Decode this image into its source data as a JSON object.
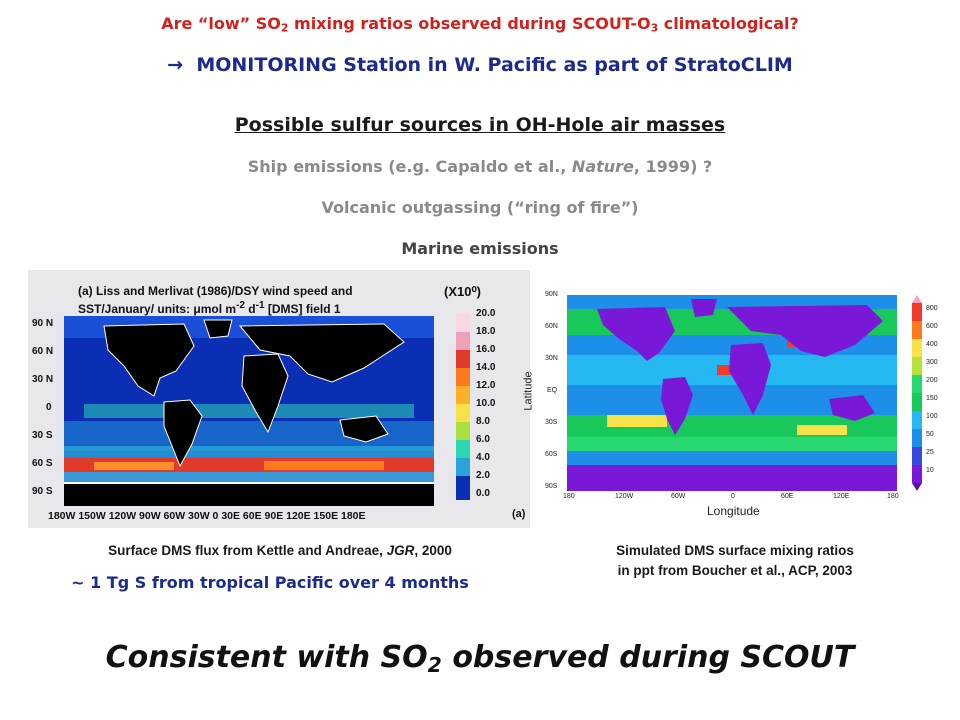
{
  "header": {
    "question_pre": "Are “low” SO",
    "question_sub1": "2",
    "question_mid": " mixing ratios observed during SCOUT-O",
    "question_sub2": "3",
    "question_post": " climatological?",
    "arrow": "→",
    "monitoring": "MONITORING Station in W. Pacific as part of StratoCLIM"
  },
  "sources": {
    "heading": "Possible sulfur sources in OH-Hole air masses",
    "ship_pre": "Ship emissions (e.g. Capaldo et al., ",
    "ship_journal": "Nature",
    "ship_post": ", 1999) ?",
    "volcanic": "Volcanic outgassing (“ring of fire”)",
    "marine": "Marine emissions"
  },
  "left_figure": {
    "title_line1": "(a) Liss and Merlivat (1986)/DSY wind speed and",
    "title_line2_pre": "SST/January/ units: μmol m",
    "title_line2_sup1": "-2",
    "title_line2_mid": " d",
    "title_line2_sup2": "-1",
    "title_line2_post": " [DMS] field 1",
    "scale_label": "(X10⁰)",
    "lat_ticks": [
      "90 N",
      "60 N",
      "30 N",
      "0",
      "30 S",
      "60 S",
      "90 S"
    ],
    "lon_ticks": "180W 150W 120W 90W 60W 30W 0 30E 60E 90E 120E 150E 180E",
    "colorbar_ticks": [
      "20.0",
      "18.0",
      "16.0",
      "14.0",
      "12.0",
      "10.0",
      "8.0",
      "6.0",
      "4.0",
      "2.0",
      "0.0"
    ],
    "panel_tag": "(a)",
    "caption_pre": "Surface DMS flux from Kettle and Andreae, ",
    "caption_journal": "JGR",
    "caption_post": ", 2000",
    "note": "~ 1 Tg S from tropical Pacific over 4 months"
  },
  "right_figure": {
    "lat_ticks": [
      "90N",
      "60N",
      "30N",
      "EQ",
      "30S",
      "60S",
      "90S"
    ],
    "lon_ticks": [
      "180",
      "120W",
      "60W",
      "0",
      "60E",
      "120E",
      "180"
    ],
    "ylabel": "Latitude",
    "xlabel": "Longitude",
    "colorbar_ticks": [
      "800",
      "600",
      "400",
      "300",
      "200",
      "150",
      "100",
      "50",
      "25",
      "10"
    ],
    "caption_line1": "Simulated DMS surface mixing ratios",
    "caption_line2": "in ppt from Boucher et al., ACP, 2003"
  },
  "conclusion": {
    "pre": "Consistent with SO",
    "sub": "2",
    "post": " observed during SCOUT"
  }
}
